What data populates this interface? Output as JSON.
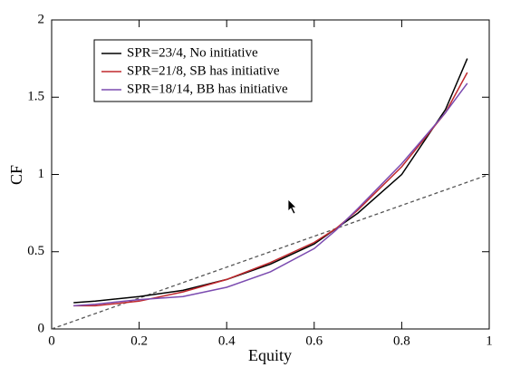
{
  "chart_data": {
    "type": "line",
    "xlabel": "Equity",
    "ylabel": "CF",
    "x": [
      0.05,
      0.1,
      0.2,
      0.3,
      0.4,
      0.5,
      0.6,
      0.65,
      0.7,
      0.8,
      0.9,
      0.95
    ],
    "series": [
      {
        "name": "SPR=23/4, No initiative",
        "color": "#000000",
        "values": [
          0.17,
          0.18,
          0.21,
          0.25,
          0.32,
          0.42,
          0.55,
          0.65,
          0.75,
          1.0,
          1.42,
          1.75
        ]
      },
      {
        "name": "SPR=21/8, SB has initiative",
        "color": "#c0282d",
        "values": [
          0.15,
          0.15,
          0.18,
          0.24,
          0.32,
          0.43,
          0.56,
          0.65,
          0.77,
          1.05,
          1.4,
          1.66
        ]
      },
      {
        "name": "SPR=18/14, BB has initiative",
        "color": "#7b4bb0",
        "values": [
          0.15,
          0.16,
          0.19,
          0.21,
          0.27,
          0.37,
          0.52,
          0.64,
          0.78,
          1.07,
          1.4,
          1.59
        ]
      }
    ],
    "reference": {
      "x": [
        0,
        1
      ],
      "values": [
        0,
        1
      ],
      "color": "#555555",
      "dash": true
    },
    "xlim": [
      0,
      1
    ],
    "xticks": [
      0,
      0.2,
      0.4,
      0.6,
      0.8,
      1
    ],
    "ylim": [
      0,
      2
    ],
    "yticks": [
      0,
      0.5,
      1,
      1.5,
      2
    ],
    "legend": "upper left"
  }
}
